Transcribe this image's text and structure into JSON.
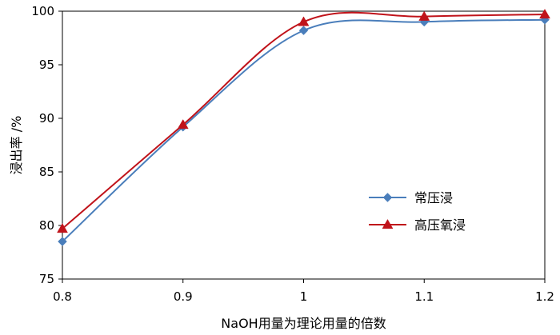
{
  "chart_data": {
    "type": "line",
    "xlabel": "NaOH用量为理论用量的倍数",
    "ylabel": "浸出率 /%",
    "x": [
      0.8,
      0.9,
      1.0,
      1.1,
      1.2
    ],
    "x_ticks": [
      "0.8",
      "0.9",
      "1",
      "1.1",
      "1.2"
    ],
    "xlim": [
      0.8,
      1.2
    ],
    "ylim": [
      75,
      100
    ],
    "y_ticks": [
      "75",
      "80",
      "85",
      "90",
      "95",
      "100"
    ],
    "y_tick_values": [
      75,
      80,
      85,
      90,
      95,
      100
    ],
    "grid": false,
    "legend_position": "right-middle",
    "smooth": true,
    "series": [
      {
        "name": "常压浸",
        "values": [
          78.5,
          89.2,
          98.2,
          99.0,
          99.2
        ],
        "color": "#4a7ebb",
        "marker": "diamond"
      },
      {
        "name": "高压氧浸",
        "values": [
          79.7,
          89.4,
          99.0,
          99.5,
          99.7
        ],
        "color": "#c0131a",
        "marker": "triangle"
      }
    ]
  }
}
